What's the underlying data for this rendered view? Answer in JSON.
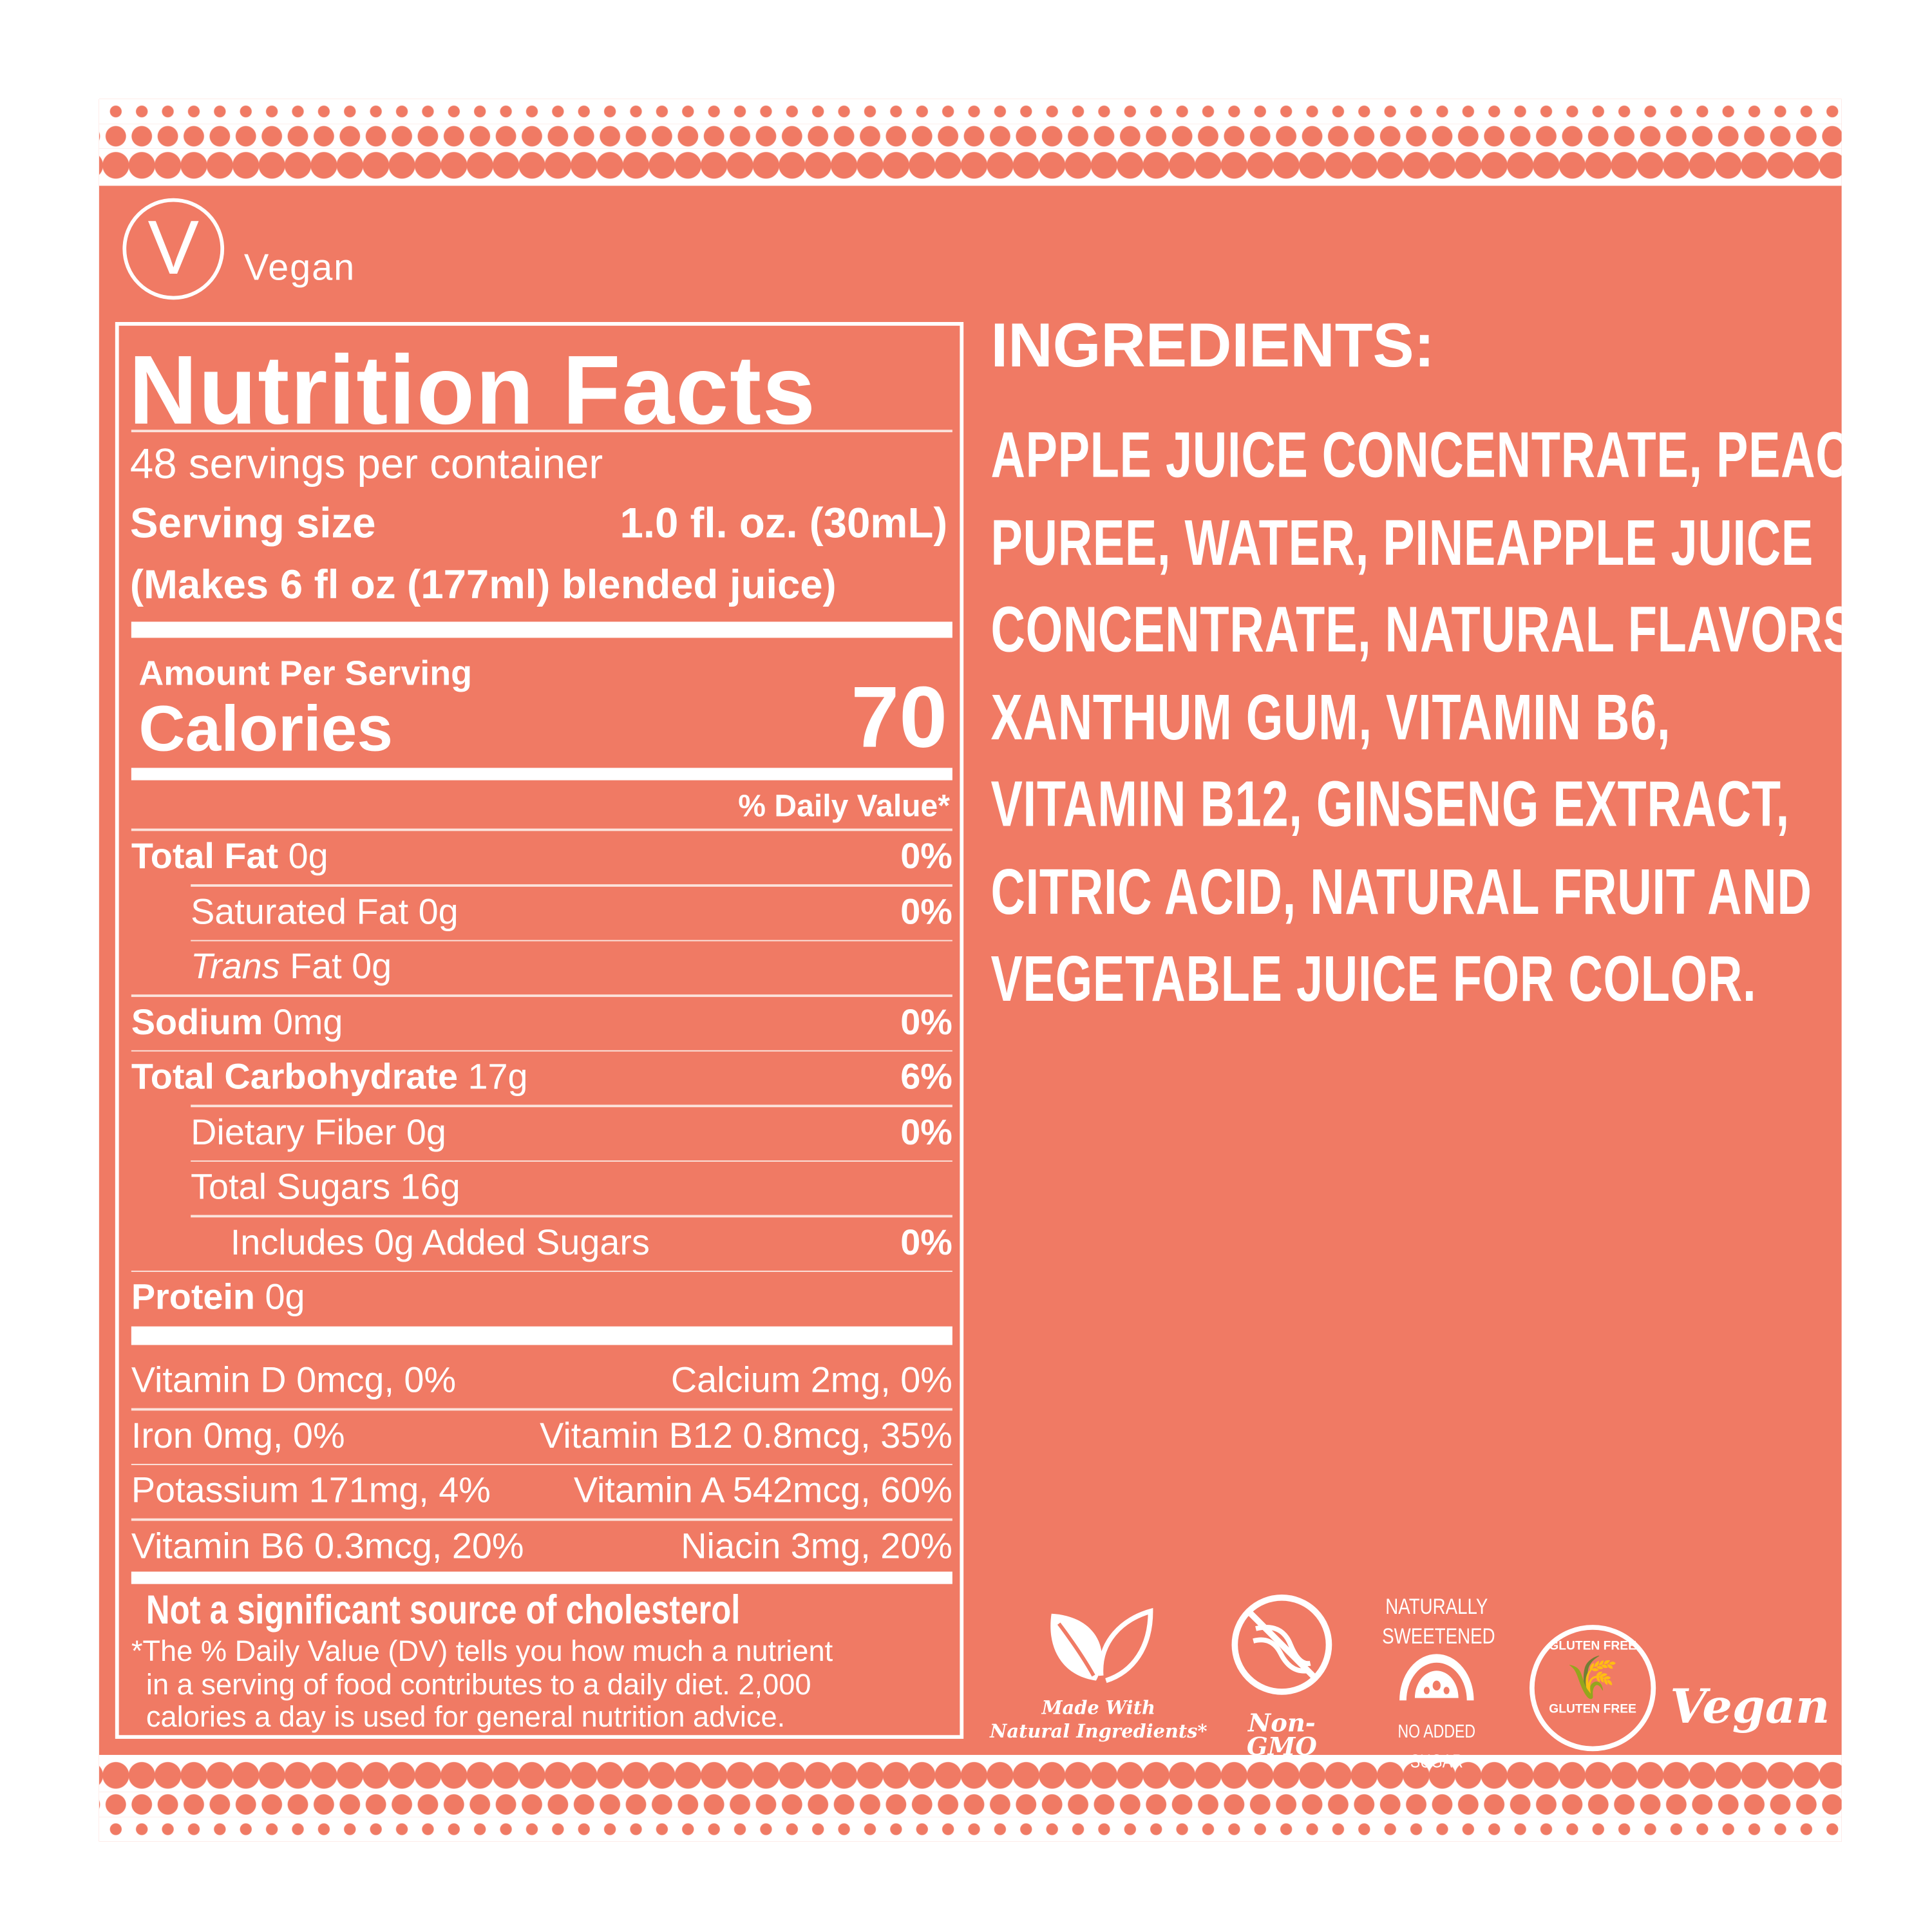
{
  "colors": {
    "background": "#F07A64",
    "text": "#FFFFFF"
  },
  "vegan_mark": {
    "icon": "v-circle-icon",
    "letter": "V",
    "label": "Vegan"
  },
  "nutrition": {
    "title": "Nutrition Facts",
    "servings": "48 servings per container",
    "serving_size_label": "Serving size",
    "serving_size_value": "1.0 fl. oz. (30mL)",
    "makes": "(Makes 6 fl oz (177ml) blended juice)",
    "amount_per_serving": "Amount Per Serving",
    "calories_label": "Calories",
    "calories_value": "70",
    "dv_header": "% Daily Value*",
    "rows": [
      {
        "bold": "Total Fat",
        "amount": " 0g",
        "dv": "0%"
      },
      {
        "bold": "",
        "amount": "Saturated Fat 0g",
        "dv": "0%"
      },
      {
        "italic": "Trans",
        "amount": " Fat 0g",
        "dv": ""
      },
      {
        "bold": "Sodium",
        "amount": " 0mg",
        "dv": "0%"
      },
      {
        "bold": "Total Carbohydrate",
        "amount": " 17g",
        "dv": "6%"
      },
      {
        "bold": "",
        "amount": "Dietary Fiber 0g",
        "dv": "0%"
      },
      {
        "bold": "",
        "amount": "Total Sugars 16g",
        "dv": ""
      },
      {
        "bold": "",
        "amount": "Includes 0g Added Sugars",
        "dv": "0%"
      },
      {
        "bold": "Protein",
        "amount": " 0g",
        "dv": ""
      }
    ],
    "vitamins": [
      [
        "Vitamin D 0mcg, 0%",
        "Calcium 2mg, 0%"
      ],
      [
        "Iron 0mg, 0%",
        "Vitamin B12 0.8mcg, 35%"
      ],
      [
        "Potassium 171mg, 4%",
        "Vitamin A 542mcg, 60%"
      ],
      [
        "Vitamin B6 0.3mcg, 20%",
        "Niacin 3mg, 20%"
      ]
    ],
    "cholesterol_note": "Not a significant source of cholesterol",
    "footnote": [
      "*The % Daily Value (DV) tells you how much a nutrient",
      "in a serving of food contributes to a daily diet. 2,000",
      "calories a day is used for general nutrition advice."
    ]
  },
  "ingredients": {
    "title": "INGREDIENTS:",
    "lines": [
      "APPLE JUICE CONCENTRATE, PEACH",
      "PUREE, WATER, PINEAPPLE JUICE",
      "CONCENTRATE, NATURAL FLAVORS,",
      "XANTHUM GUM, VITAMIN B6,",
      "VITAMIN B12, GINSENG EXTRACT,",
      "CITRIC ACID, NATURAL FRUIT AND",
      "VEGETABLE JUICE FOR COLOR."
    ]
  },
  "badges": {
    "natural": {
      "icon": "leaf-icon",
      "line1": "Made With",
      "line2": "Natural Ingredients*"
    },
    "nongmo": {
      "icon": "no-dna-icon",
      "label": "Non-GMO"
    },
    "sweetened": {
      "icon": "fruit-slice-icon",
      "line1": "NATURALLY",
      "line2": "SWEETENED",
      "line3": "NO ADDED SUGAR"
    },
    "gluten": {
      "icon": "wheat-icon",
      "top": "GLUTEN FREE",
      "bottom": "GLUTEN FREE"
    },
    "vegan": {
      "label": "Vegan"
    }
  }
}
